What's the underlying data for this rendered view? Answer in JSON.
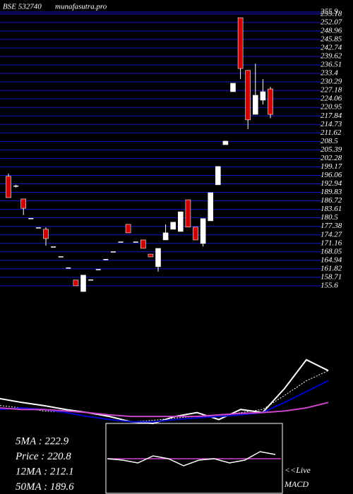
{
  "chart_data": {
    "type": "candlestick",
    "title": "BSE 532740",
    "subtitle": "munafasutra.pro",
    "ylim": [
      153,
      260.3
    ],
    "yticks": [
      255.9,
      255.18,
      252.07,
      248.96,
      245.85,
      242.74,
      239.62,
      236.51,
      233.4,
      230.29,
      227.18,
      224.06,
      220.95,
      217.84,
      214.73,
      211.62,
      208.5,
      205.39,
      202.28,
      199.17,
      196.06,
      192.94,
      189.83,
      186.72,
      183.61,
      180.5,
      177.38,
      174.27,
      171.16,
      168.05,
      164.94,
      161.82,
      158.71,
      155.6
    ],
    "grid": true,
    "grid_color": "#1515c8",
    "up_color": "#ffffff",
    "down_color": "#cc0000",
    "open": [
      195.7,
      192.1,
      187.4,
      180.2,
      176.8,
      176.3,
      169.8,
      166.2,
      162.1,
      157.7,
      153.5,
      157.7,
      161.5,
      165.2,
      168.0,
      171.6,
      178.1,
      171.6,
      172.4,
      167.2,
      162.6,
      172.4,
      176.3,
      175.5,
      187.1,
      177.1,
      171.1,
      179.4,
      192.6,
      207.3,
      226.7,
      253.8,
      234.5,
      218.4,
      223.6,
      227.7
    ],
    "high": [
      196.7,
      192.6,
      187.4,
      180.2,
      176.8,
      177.0,
      169.8,
      166.2,
      162.1,
      157.7,
      159.5,
      157.7,
      161.5,
      165.2,
      168.0,
      171.6,
      178.1,
      171.6,
      172.4,
      167.2,
      169.3,
      178.1,
      178.9,
      182.7,
      187.1,
      177.1,
      180.2,
      189.7,
      199.3,
      208.6,
      229.8,
      253.8,
      234.5,
      237.0,
      231.3,
      228.5
    ],
    "low": [
      187.9,
      191.6,
      181.5,
      180.2,
      176.8,
      170.3,
      169.8,
      166.2,
      162.1,
      155.6,
      153.5,
      157.7,
      161.5,
      165.2,
      168.0,
      171.6,
      175.0,
      171.6,
      169.3,
      166.2,
      160.8,
      172.4,
      176.3,
      175.5,
      177.1,
      172.4,
      170.0,
      179.4,
      192.6,
      207.3,
      226.7,
      231.3,
      213.0,
      218.4,
      222.0,
      217.0
    ],
    "close": [
      187.9,
      192.1,
      184.0,
      180.2,
      176.8,
      172.9,
      169.8,
      166.2,
      162.1,
      155.6,
      159.5,
      157.7,
      161.5,
      165.2,
      168.0,
      171.6,
      175.0,
      171.6,
      169.3,
      166.2,
      169.3,
      175.0,
      178.9,
      182.7,
      177.1,
      172.4,
      180.2,
      189.7,
      199.3,
      208.6,
      229.8,
      235.2,
      216.4,
      225.4,
      226.7,
      218.4
    ],
    "indicator_lim": [
      0,
      100
    ],
    "indicator_lines": [
      {
        "color": "#ffffff",
        "dashed": false,
        "values": [
          32,
          27,
          23,
          18,
          14,
          9,
          2,
          0,
          9,
          14,
          5,
          18,
          14,
          45,
          82,
          68
        ]
      },
      {
        "color": "#ffffff",
        "dashed": true,
        "values": [
          23,
          20,
          16,
          14,
          9,
          5,
          2,
          4,
          7,
          9,
          9,
          14,
          18,
          36,
          55,
          68
        ]
      },
      {
        "color": "#0000cc",
        "dashed": false,
        "values": [
          18,
          20,
          18,
          14,
          9,
          5,
          2,
          2,
          5,
          7,
          9,
          11,
          14,
          27,
          41,
          55
        ]
      },
      {
        "color": "#cc44cc",
        "dashed": false,
        "values": [
          20,
          18,
          18,
          16,
          14,
          11,
          9,
          9,
          9,
          9,
          11,
          13,
          14,
          16,
          20,
          27
        ]
      }
    ],
    "info": [
      "5MA : 222.9",
      "Price : 220.8",
      "12MA : 212.1",
      "50MA : 189.6"
    ],
    "macd_lim": [
      -25,
      25
    ],
    "macd": [
      0,
      -1,
      -3,
      2,
      0,
      -5,
      -1,
      0,
      -3,
      -1,
      5,
      3
    ],
    "macd_signal": 0,
    "macd_color": "#ffffff",
    "signal_color": "#cc44cc",
    "macd_label": [
      "<<Live",
      "MACD"
    ]
  }
}
